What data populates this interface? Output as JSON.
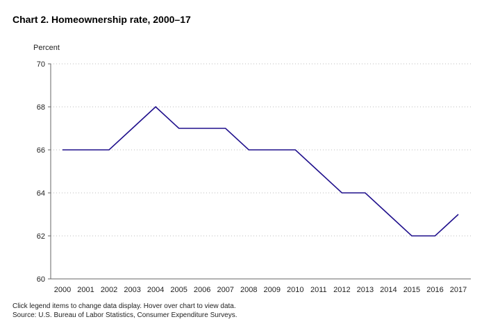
{
  "title": "Chart 2. Homeownership rate, 2000–17",
  "footnotes": {
    "line1": "Click legend items to change data display. Hover over chart to view data.",
    "line2": "Source: U.S. Bureau of Labor Statistics, Consumer Expenditure Surveys."
  },
  "chart_data": {
    "type": "line",
    "title": "Chart 2. Homeownership rate, 2000–17",
    "ylabel": "Percent",
    "xlabel": "",
    "ylim": [
      60,
      70
    ],
    "yticks": [
      60,
      62,
      64,
      66,
      68,
      70
    ],
    "grid": true,
    "x": [
      "2000",
      "2001",
      "2002",
      "2003",
      "2004",
      "2005",
      "2006",
      "2007",
      "2008",
      "2009",
      "2010",
      "2011",
      "2012",
      "2013",
      "2014",
      "2015",
      "2016",
      "2017"
    ],
    "series": [
      {
        "values": [
          66,
          66,
          66,
          67,
          68,
          67,
          67,
          67,
          66,
          66,
          66,
          65,
          64,
          64,
          63,
          62,
          62,
          63
        ],
        "color": "#1f0f8c"
      }
    ],
    "colors": {
      "grid": "#bbbbbb",
      "axis": "#666666"
    }
  }
}
